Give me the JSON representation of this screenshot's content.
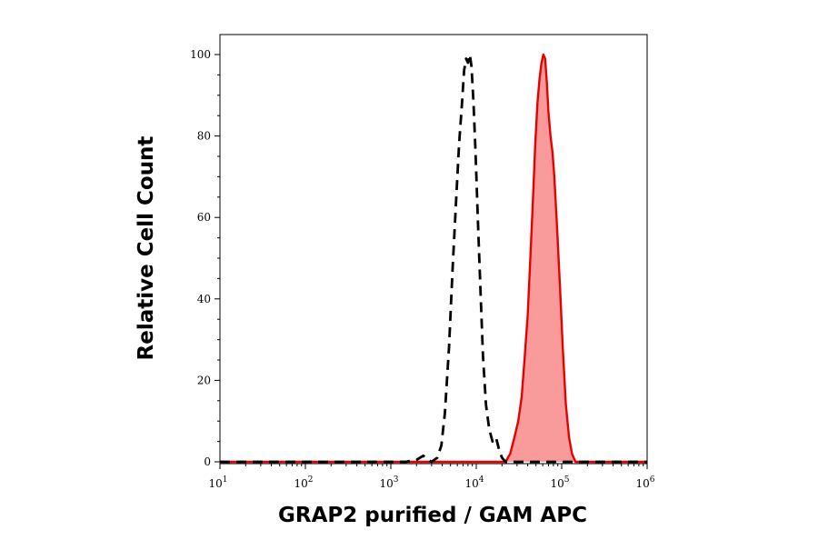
{
  "chart_data": {
    "type": "area",
    "title": "",
    "xlabel": "GRAP2 purified / GAM APC",
    "ylabel": "Relative Cell Count",
    "x_scale": "log",
    "xlim": [
      10,
      1000000
    ],
    "ylim": [
      0,
      105
    ],
    "grid": false,
    "legend": "none",
    "y_ticks": [
      {
        "value": 0,
        "label": "0"
      },
      {
        "value": 20,
        "label": "20"
      },
      {
        "value": 40,
        "label": "40"
      },
      {
        "value": 60,
        "label": "60"
      },
      {
        "value": 80,
        "label": "80"
      },
      {
        "value": 100,
        "label": "100"
      }
    ],
    "x_ticks": [
      {
        "value": 10,
        "base": "10",
        "exp": "1"
      },
      {
        "value": 100,
        "base": "10",
        "exp": "2"
      },
      {
        "value": 1000,
        "base": "10",
        "exp": "3"
      },
      {
        "value": 10000,
        "base": "10",
        "exp": "4"
      },
      {
        "value": 100000,
        "base": "10",
        "exp": "5"
      },
      {
        "value": 1000000,
        "base": "10",
        "exp": "6"
      }
    ],
    "series": [
      {
        "style": "dashed",
        "color": "#000000",
        "fill": "none",
        "points": [
          [
            10,
            0
          ],
          [
            1500,
            0
          ],
          [
            2000,
            0.5
          ],
          [
            2400,
            1.5
          ],
          [
            2700,
            0.5
          ],
          [
            3000,
            0
          ],
          [
            3500,
            1
          ],
          [
            3900,
            4
          ],
          [
            4300,
            12
          ],
          [
            4800,
            28
          ],
          [
            5300,
            48
          ],
          [
            5800,
            64
          ],
          [
            6300,
            78
          ],
          [
            6800,
            88
          ],
          [
            7200,
            96
          ],
          [
            7600,
            99
          ],
          [
            8000,
            98
          ],
          [
            8400,
            100
          ],
          [
            8800,
            97
          ],
          [
            9300,
            88
          ],
          [
            9800,
            76
          ],
          [
            10500,
            58
          ],
          [
            11300,
            40
          ],
          [
            12000,
            26
          ],
          [
            13000,
            14
          ],
          [
            14200,
            8
          ],
          [
            15500,
            5
          ],
          [
            17000,
            6
          ],
          [
            18500,
            3
          ],
          [
            20000,
            1
          ],
          [
            22000,
            0
          ],
          [
            1000000,
            0
          ]
        ]
      },
      {
        "style": "solid",
        "color": "#e60000",
        "fill": "#f99b9b",
        "points": [
          [
            10,
            0
          ],
          [
            22000,
            0
          ],
          [
            25000,
            2
          ],
          [
            28000,
            6
          ],
          [
            31000,
            10
          ],
          [
            34000,
            16
          ],
          [
            37000,
            26
          ],
          [
            40000,
            36
          ],
          [
            43000,
            50
          ],
          [
            46000,
            64
          ],
          [
            49000,
            78
          ],
          [
            52000,
            88
          ],
          [
            55000,
            94
          ],
          [
            58000,
            98
          ],
          [
            61000,
            100
          ],
          [
            64000,
            99
          ],
          [
            67000,
            93
          ],
          [
            70000,
            86
          ],
          [
            74000,
            80
          ],
          [
            78000,
            76
          ],
          [
            82000,
            70
          ],
          [
            88000,
            58
          ],
          [
            95000,
            44
          ],
          [
            103000,
            28
          ],
          [
            112000,
            14
          ],
          [
            122000,
            6
          ],
          [
            132000,
            2
          ],
          [
            145000,
            0
          ],
          [
            1000000,
            0
          ]
        ]
      }
    ]
  }
}
